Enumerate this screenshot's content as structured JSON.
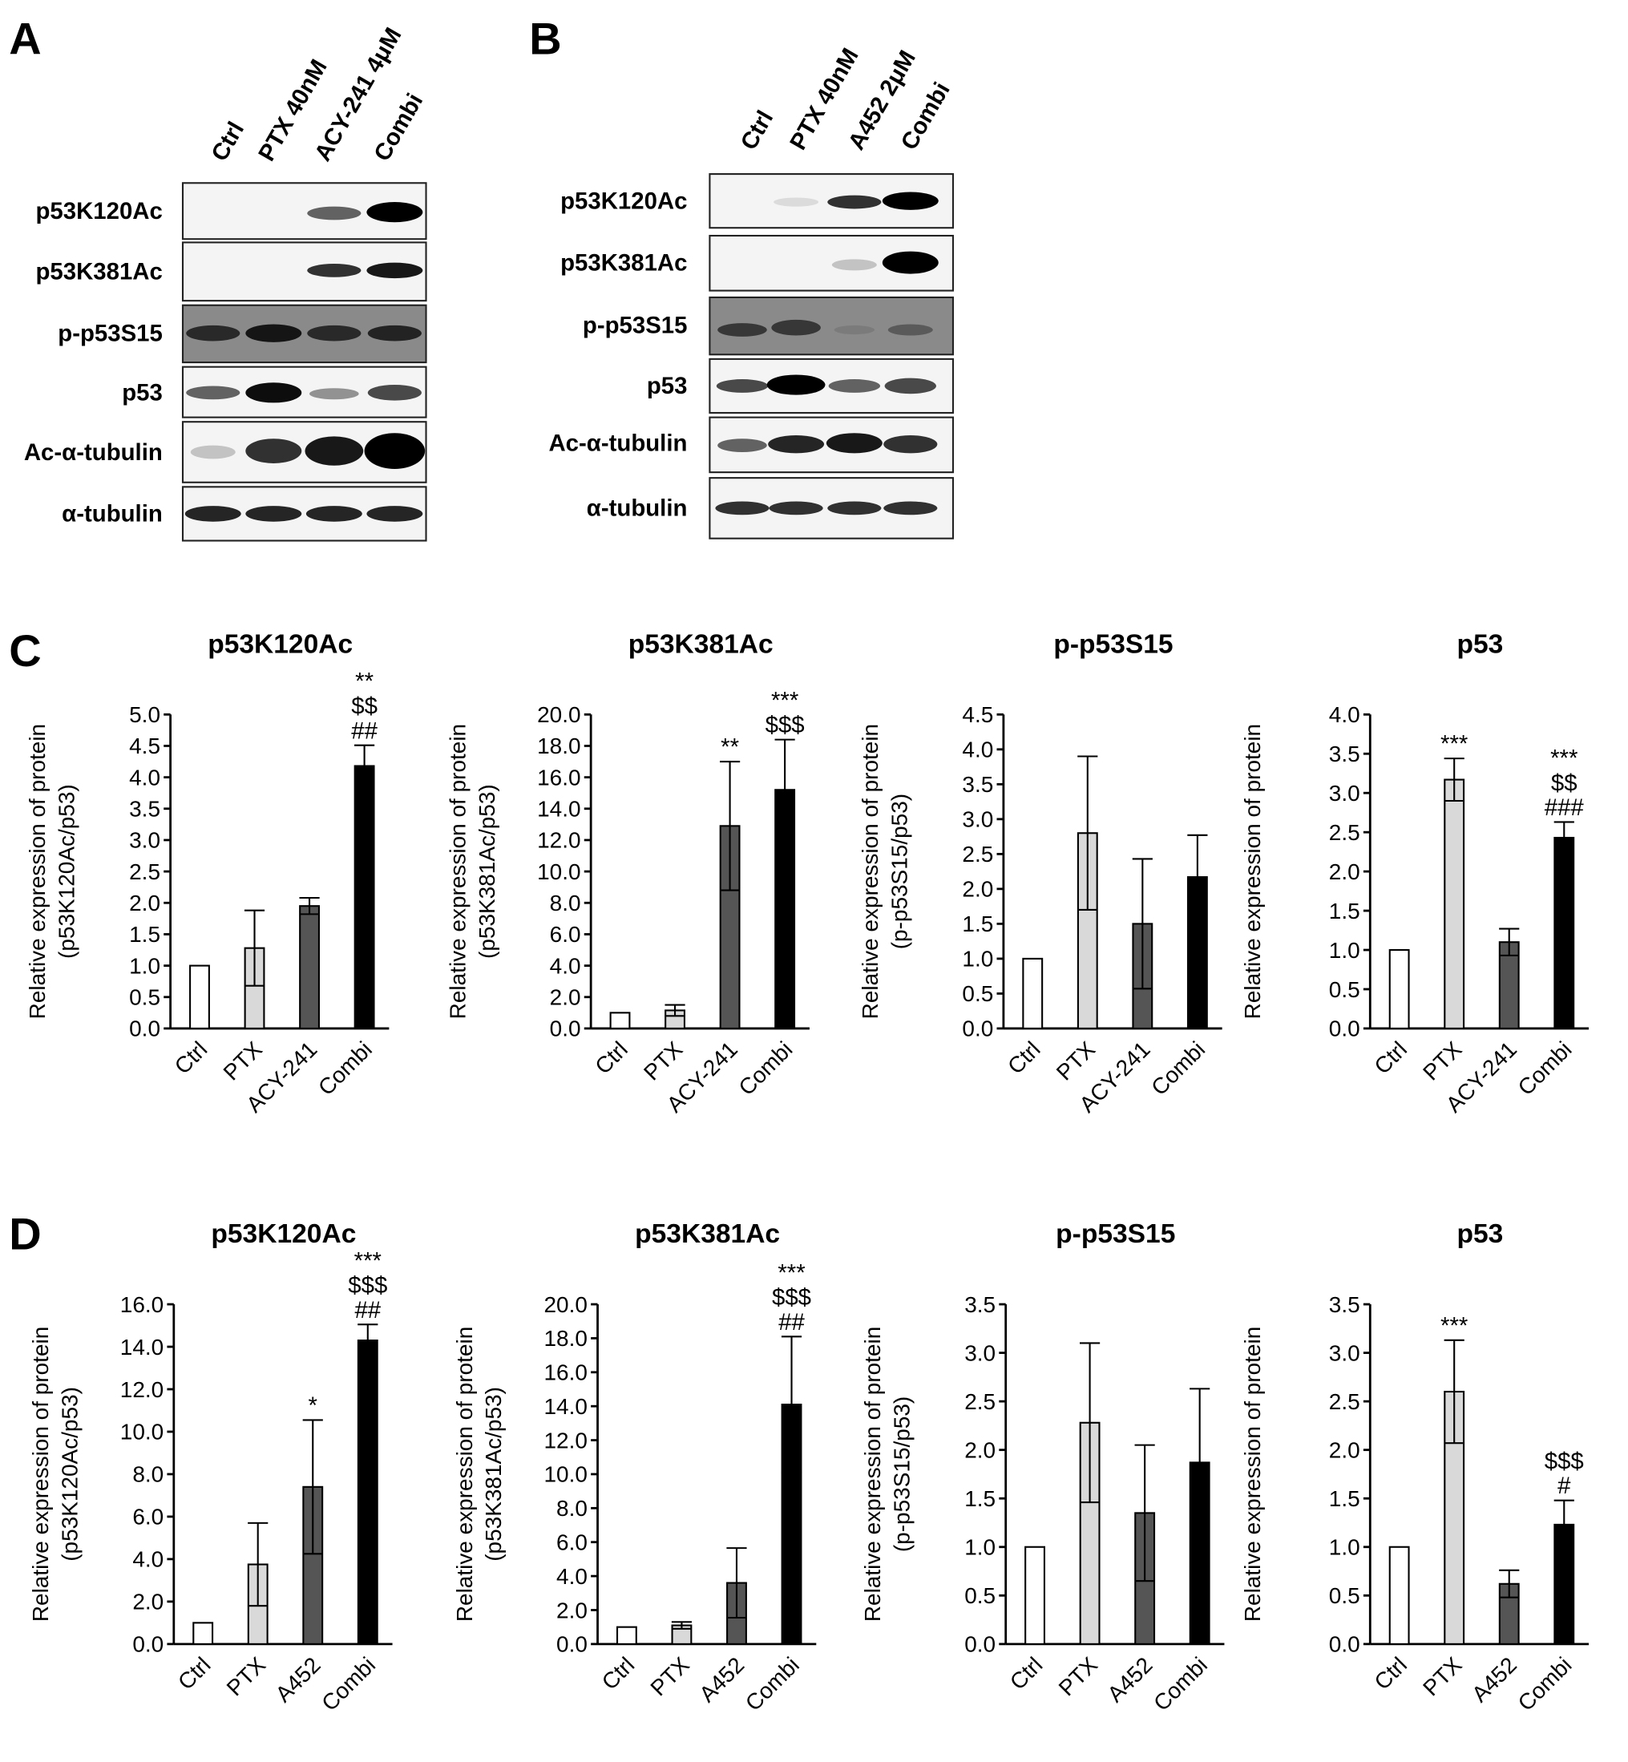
{
  "panel_labels": [
    "A",
    "B",
    "C",
    "D"
  ],
  "blots": [
    {
      "lanes": [
        "Ctrl",
        "PTX 40nM",
        "ACY-241 4μM",
        "Combi"
      ],
      "rows": [
        "p53K120Ac",
        "p53K381Ac",
        "p-p53S15",
        "p53",
        "Ac-α-tubulin",
        "α-tubulin"
      ]
    },
    {
      "lanes": [
        "Ctrl",
        "PTX 40nM",
        "A452 2μM",
        "Combi"
      ],
      "rows": [
        "p53K120Ac",
        "p53K381Ac",
        "p-p53S15",
        "p53",
        "Ac-α-tubulin",
        "α-tubulin"
      ]
    }
  ],
  "chart_data": [
    {
      "type": "bar",
      "title": "p53K120Ac",
      "ylabel": [
        "Relative expression of protein",
        "(p53K120Ac/p53)"
      ],
      "categories": [
        "Ctrl",
        "PTX",
        "ACY-241",
        "Combi"
      ],
      "values": [
        1.0,
        1.28,
        1.95,
        4.18
      ],
      "errors": [
        0,
        0.6,
        0.13,
        0.33
      ],
      "colors": [
        "#ffffff",
        "#d9d9d9",
        "#555555",
        "#000000"
      ],
      "annotations": [
        null,
        null,
        null,
        [
          "**",
          "$$",
          "##"
        ]
      ],
      "ylim": [
        0,
        5
      ],
      "yticks": [
        {
          "value": 0,
          "label": "0.0"
        },
        0.5,
        {
          "value": 1,
          "label": "1.0"
        },
        1.5,
        {
          "value": 2,
          "label": "2.0"
        },
        2.5,
        {
          "value": 3,
          "label": "3.0"
        },
        3.5,
        {
          "value": 4,
          "label": "4.0"
        },
        4.5,
        {
          "value": 5,
          "label": "5.0"
        }
      ]
    },
    {
      "type": "bar",
      "title": "p53K381Ac",
      "ylabel": [
        "Relative expression of protein",
        "(p53K381Ac/p53)"
      ],
      "categories": [
        "Ctrl",
        "PTX",
        "ACY-241",
        "Combi"
      ],
      "values": [
        1.0,
        1.15,
        12.9,
        15.2
      ],
      "errors": [
        0,
        0.35,
        4.1,
        3.2
      ],
      "colors": [
        "#ffffff",
        "#d9d9d9",
        "#555555",
        "#000000"
      ],
      "annotations": [
        null,
        null,
        [
          "**"
        ],
        [
          "***",
          "$$$"
        ]
      ],
      "ylim": [
        0,
        20
      ],
      "yticks": [
        {
          "value": 0,
          "label": "0.0"
        },
        {
          "value": 2,
          "label": "2.0"
        },
        {
          "value": 4,
          "label": "4.0"
        },
        {
          "value": 6,
          "label": "6.0"
        },
        {
          "value": 8,
          "label": "8.0"
        },
        {
          "value": 10,
          "label": "10.0"
        },
        {
          "value": 12,
          "label": "12.0"
        },
        {
          "value": 14,
          "label": "14.0"
        },
        {
          "value": 16,
          "label": "16.0"
        },
        {
          "value": 18,
          "label": "18.0"
        },
        {
          "value": 20,
          "label": "20.0"
        }
      ]
    },
    {
      "type": "bar",
      "title": "p-p53S15",
      "ylabel": [
        "Relative expression of protein",
        "(p-p53S15/p53)"
      ],
      "categories": [
        "Ctrl",
        "PTX",
        "ACY-241",
        "Combi"
      ],
      "values": [
        1.0,
        2.8,
        1.5,
        2.17
      ],
      "errors": [
        0,
        1.1,
        0.93,
        0.6
      ],
      "colors": [
        "#ffffff",
        "#d9d9d9",
        "#555555",
        "#000000"
      ],
      "annotations": [
        null,
        null,
        null,
        null
      ],
      "ylim": [
        0,
        4.5
      ],
      "yticks": [
        {
          "value": 0,
          "label": "0.0"
        },
        0.5,
        {
          "value": 1,
          "label": "1.0"
        },
        1.5,
        {
          "value": 2,
          "label": "2.0"
        },
        2.5,
        {
          "value": 3,
          "label": "3.0"
        },
        3.5,
        {
          "value": 4,
          "label": "4.0"
        },
        4.5
      ]
    },
    {
      "type": "bar",
      "title": "p53",
      "ylabel": [
        "Relative expression of protein"
      ],
      "categories": [
        "Ctrl",
        "PTX",
        "ACY-241",
        "Combi"
      ],
      "values": [
        1.0,
        3.17,
        1.1,
        2.43
      ],
      "errors": [
        0,
        0.27,
        0.17,
        0.2
      ],
      "colors": [
        "#ffffff",
        "#d9d9d9",
        "#555555",
        "#000000"
      ],
      "annotations": [
        null,
        [
          "***"
        ],
        null,
        [
          "***",
          "$$",
          "###"
        ]
      ],
      "ylim": [
        0,
        4
      ],
      "yticks": [
        {
          "value": 0,
          "label": "0.0"
        },
        0.5,
        {
          "value": 1,
          "label": "1.0"
        },
        1.5,
        {
          "value": 2,
          "label": "2.0"
        },
        2.5,
        {
          "value": 3,
          "label": "3.0"
        },
        3.5,
        {
          "value": 4,
          "label": "4.0"
        }
      ]
    },
    {
      "type": "bar",
      "title": "p53K120Ac",
      "ylabel": [
        "Relative expression of protein",
        "(p53K120Ac/p53)"
      ],
      "categories": [
        "Ctrl",
        "PTX",
        "A452",
        "Combi"
      ],
      "values": [
        1.0,
        3.75,
        7.4,
        14.3
      ],
      "errors": [
        0,
        1.95,
        3.15,
        0.75
      ],
      "colors": [
        "#ffffff",
        "#d9d9d9",
        "#555555",
        "#000000"
      ],
      "annotations": [
        null,
        null,
        [
          "*"
        ],
        [
          "***",
          "$$$",
          "##"
        ]
      ],
      "ylim": [
        0,
        16
      ],
      "yticks": [
        {
          "value": 0,
          "label": "0.0"
        },
        {
          "value": 2,
          "label": "2.0"
        },
        {
          "value": 4,
          "label": "4.0"
        },
        {
          "value": 6,
          "label": "6.0"
        },
        {
          "value": 8,
          "label": "8.0"
        },
        {
          "value": 10,
          "label": "10.0"
        },
        {
          "value": 12,
          "label": "12.0"
        },
        {
          "value": 14,
          "label": "14.0"
        },
        {
          "value": 16,
          "label": "16.0"
        }
      ]
    },
    {
      "type": "bar",
      "title": "p53K381Ac",
      "ylabel": [
        "Relative expression of protein",
        "(p53K381Ac/p53)"
      ],
      "categories": [
        "Ctrl",
        "PTX",
        "A452",
        "Combi"
      ],
      "values": [
        1.0,
        1.1,
        3.6,
        14.1
      ],
      "errors": [
        0,
        0.2,
        2.05,
        4.0
      ],
      "colors": [
        "#ffffff",
        "#d9d9d9",
        "#555555",
        "#000000"
      ],
      "annotations": [
        null,
        null,
        null,
        [
          "***",
          "$$$",
          "##"
        ]
      ],
      "ylim": [
        0,
        20
      ],
      "yticks": [
        {
          "value": 0,
          "label": "0.0"
        },
        {
          "value": 2,
          "label": "2.0"
        },
        {
          "value": 4,
          "label": "4.0"
        },
        {
          "value": 6,
          "label": "6.0"
        },
        {
          "value": 8,
          "label": "8.0"
        },
        {
          "value": 10,
          "label": "10.0"
        },
        {
          "value": 12,
          "label": "12.0"
        },
        {
          "value": 14,
          "label": "14.0"
        },
        {
          "value": 16,
          "label": "16.0"
        },
        {
          "value": 18,
          "label": "18.0"
        },
        {
          "value": 20,
          "label": "20.0"
        }
      ]
    },
    {
      "type": "bar",
      "title": "p-p53S15",
      "ylabel": [
        "Relative expression of protein",
        "(p-p53S15/p53)"
      ],
      "categories": [
        "Ctrl",
        "PTX",
        "A452",
        "Combi"
      ],
      "values": [
        1.0,
        2.28,
        1.35,
        1.87
      ],
      "errors": [
        0,
        0.82,
        0.7,
        0.76
      ],
      "colors": [
        "#ffffff",
        "#d9d9d9",
        "#555555",
        "#000000"
      ],
      "annotations": [
        null,
        null,
        null,
        null
      ],
      "ylim": [
        0,
        3.5
      ],
      "yticks": [
        {
          "value": 0,
          "label": "0.0"
        },
        0.5,
        {
          "value": 1,
          "label": "1.0"
        },
        1.5,
        {
          "value": 2,
          "label": "2.0"
        },
        2.5,
        {
          "value": 3,
          "label": "3.0"
        },
        3.5
      ]
    },
    {
      "type": "bar",
      "title": "p53",
      "ylabel": [
        "Relative expression of protein"
      ],
      "categories": [
        "Ctrl",
        "PTX",
        "A452",
        "Combi"
      ],
      "values": [
        1.0,
        2.6,
        0.62,
        1.23
      ],
      "errors": [
        0,
        0.53,
        0.14,
        0.25
      ],
      "colors": [
        "#ffffff",
        "#d9d9d9",
        "#555555",
        "#000000"
      ],
      "annotations": [
        null,
        [
          "***"
        ],
        null,
        [
          "$$$",
          "#"
        ]
      ],
      "ylim": [
        0,
        3.5
      ],
      "yticks": [
        {
          "value": 0,
          "label": "0.0"
        },
        0.5,
        {
          "value": 1,
          "label": "1.0"
        },
        1.5,
        {
          "value": 2,
          "label": "2.0"
        },
        2.5,
        {
          "value": 3,
          "label": "3.0"
        },
        3.5
      ]
    }
  ]
}
